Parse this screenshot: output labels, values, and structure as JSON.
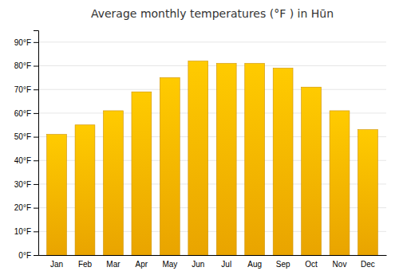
{
  "chart_data": {
    "type": "bar",
    "title": "Average monthly temperatures (°F ) in Hūn",
    "categories": [
      "Jan",
      "Feb",
      "Mar",
      "Apr",
      "May",
      "Jun",
      "Jul",
      "Aug",
      "Sep",
      "Oct",
      "Nov",
      "Dec"
    ],
    "values": [
      51,
      55,
      61,
      69,
      75,
      82,
      81,
      81,
      79,
      71,
      61,
      53
    ],
    "color": "#FFB300",
    "ylim": [
      0,
      95
    ],
    "yticks": [
      {
        "value": 0,
        "label": "0°F"
      },
      {
        "value": 10,
        "label": "10°F"
      },
      {
        "value": 20,
        "label": "20°F"
      },
      {
        "value": 30,
        "label": "30°F"
      },
      {
        "value": 40,
        "label": "40°F"
      },
      {
        "value": 50,
        "label": "50°F"
      },
      {
        "value": 60,
        "label": "60°F"
      },
      {
        "value": 70,
        "label": "70°F"
      },
      {
        "value": 80,
        "label": "80°F"
      },
      {
        "value": 90,
        "label": "90°F"
      }
    ],
    "grid": true
  }
}
